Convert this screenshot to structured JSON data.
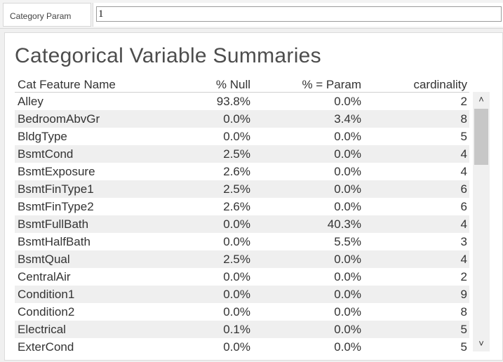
{
  "parameter": {
    "label": "Category Param",
    "value": "1"
  },
  "panel": {
    "title": "Categorical Variable Summaries"
  },
  "table": {
    "headers": [
      "Cat Feature Name",
      "% Null",
      "% = Param",
      "cardinality"
    ],
    "rows": [
      [
        "Alley",
        "93.8%",
        "0.0%",
        "2"
      ],
      [
        "BedroomAbvGr",
        "0.0%",
        "3.4%",
        "8"
      ],
      [
        "BldgType",
        "0.0%",
        "0.0%",
        "5"
      ],
      [
        "BsmtCond",
        "2.5%",
        "0.0%",
        "4"
      ],
      [
        "BsmtExposure",
        "2.6%",
        "0.0%",
        "4"
      ],
      [
        "BsmtFinType1",
        "2.5%",
        "0.0%",
        "6"
      ],
      [
        "BsmtFinType2",
        "2.6%",
        "0.0%",
        "6"
      ],
      [
        "BsmtFullBath",
        "0.0%",
        "40.3%",
        "4"
      ],
      [
        "BsmtHalfBath",
        "0.0%",
        "5.5%",
        "3"
      ],
      [
        "BsmtQual",
        "2.5%",
        "0.0%",
        "4"
      ],
      [
        "CentralAir",
        "0.0%",
        "0.0%",
        "2"
      ],
      [
        "Condition1",
        "0.0%",
        "0.0%",
        "9"
      ],
      [
        "Condition2",
        "0.0%",
        "0.0%",
        "8"
      ],
      [
        "Electrical",
        "0.1%",
        "0.0%",
        "5"
      ],
      [
        "ExterCond",
        "0.0%",
        "0.0%",
        "5"
      ]
    ]
  },
  "scrollbar": {
    "up_icon": "chevron-up-icon",
    "down_icon": "chevron-down-icon",
    "position": 0.0
  }
}
